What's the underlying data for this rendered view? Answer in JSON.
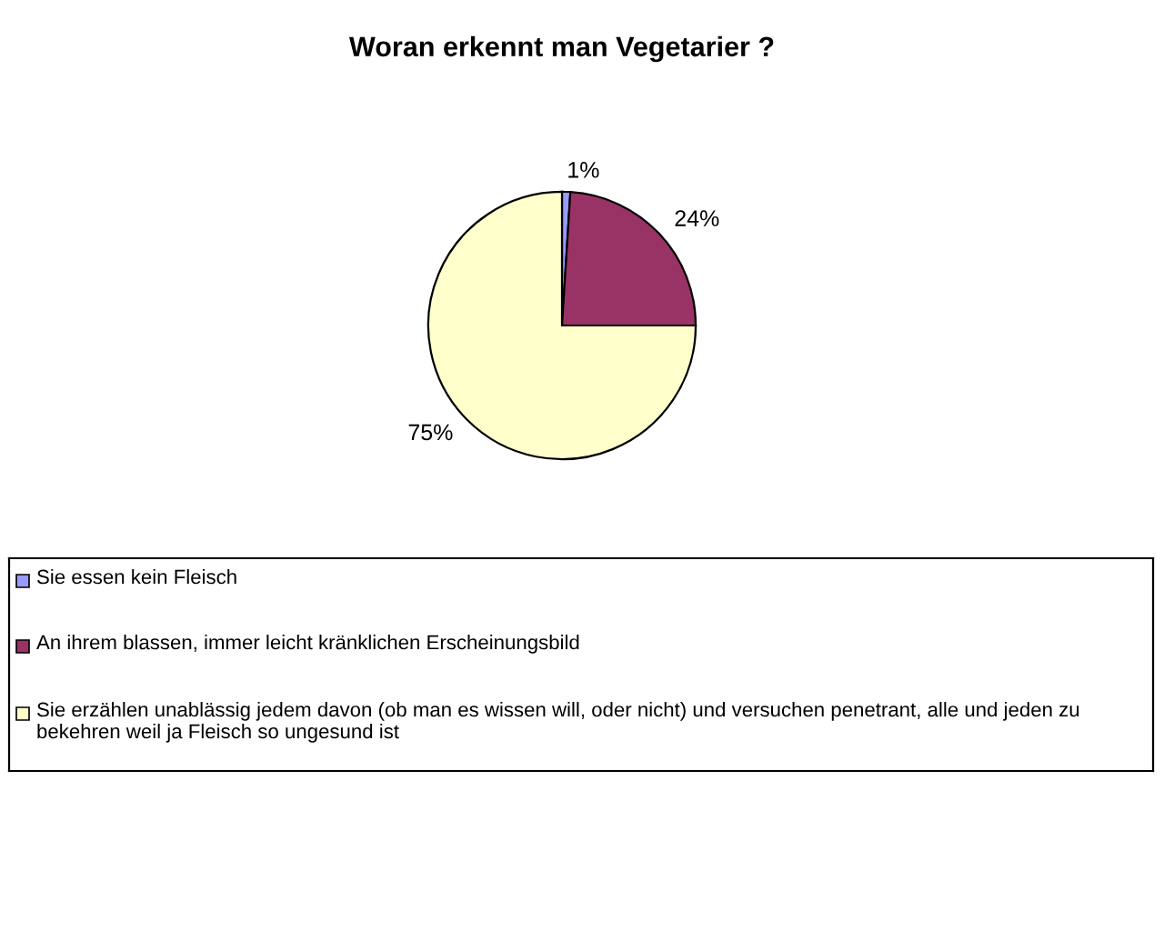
{
  "chart_data": {
    "type": "pie",
    "title": "Woran erkennt man Vegetarier ?",
    "categories": [
      "Sie essen kein Fleisch",
      "An ihrem blassen, immer leicht kränklichen Erscheinungsbild",
      "Sie erzählen unablässig jedem davon (ob man es wissen will, oder nicht) und versuchen penetrant, alle und jeden zu bekehren weil ja Fleisch so ungesund ist"
    ],
    "values": [
      1,
      24,
      75
    ],
    "colors": [
      "#9999ff",
      "#993366",
      "#ffffcc"
    ],
    "value_labels": [
      "1%",
      "24%",
      "75%"
    ],
    "legend": "bottom"
  }
}
